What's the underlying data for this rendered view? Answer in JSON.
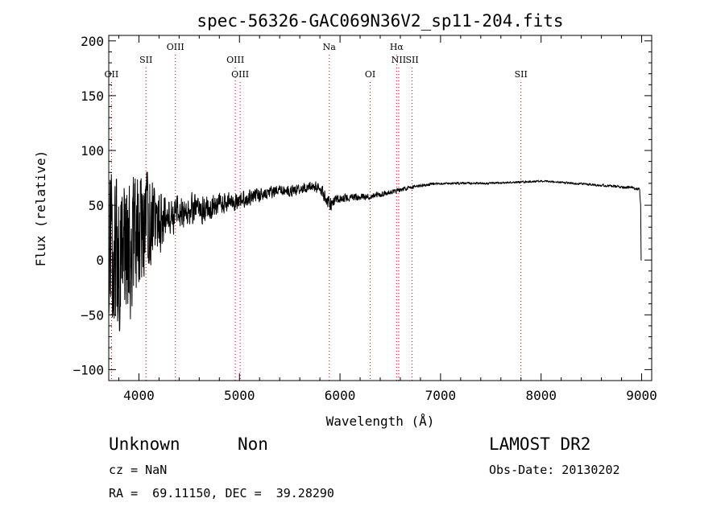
{
  "chart_data": {
    "type": "line",
    "title": "spec-56326-GAC069N36V2_sp11-204.fits",
    "xlabel": "Wavelength (Å)",
    "ylabel": "Flux (relative)",
    "xlim": [
      3700,
      9100
    ],
    "ylim": [
      -110,
      205
    ],
    "xticks": [
      4000,
      5000,
      6000,
      7000,
      8000,
      9000
    ],
    "yticks": [
      -100,
      -50,
      0,
      50,
      100,
      150,
      200
    ],
    "xtick_labels": [
      "4000",
      "5000",
      "6000",
      "7000",
      "8000",
      "9000"
    ],
    "ytick_labels": [
      "−100",
      "−50",
      "0",
      "50",
      "100",
      "150",
      "200"
    ],
    "line_color": "#000000",
    "marker_color": "#cc0000",
    "line_markers": [
      {
        "label": "OII",
        "wavelength": 3727,
        "row": 3
      },
      {
        "label": "SII",
        "wavelength": 4070,
        "row": 2
      },
      {
        "label": "OIII",
        "wavelength": 4363,
        "row": 1
      },
      {
        "label": "OIII",
        "wavelength": 4959,
        "row": 2
      },
      {
        "label": "OIII",
        "wavelength": 5007,
        "row": 3
      },
      {
        "label": "Na",
        "wavelength": 5893,
        "row": 1
      },
      {
        "label": "OI",
        "wavelength": 6300,
        "row": 3
      },
      {
        "label": "Hα",
        "wavelength": 6563,
        "row": 1
      },
      {
        "label": "NII",
        "wavelength": 6584,
        "row": 2
      },
      {
        "label": "SII",
        "wavelength": 6717,
        "row": 2
      },
      {
        "label": "SII",
        "wavelength": 7800,
        "row": 3
      }
    ],
    "spectrum_anchors": {
      "wavelength": [
        3700,
        3900,
        4100,
        4300,
        4500,
        4700,
        4900,
        5100,
        5300,
        5500,
        5700,
        5800,
        5900,
        6000,
        6200,
        6400,
        6600,
        6800,
        7000,
        7500,
        8000,
        8500,
        8900,
        8980,
        9000
      ],
      "flux": [
        0,
        5,
        35,
        40,
        45,
        48,
        53,
        57,
        62,
        63,
        67,
        66,
        50,
        57,
        57,
        60,
        64,
        68,
        70,
        70,
        72,
        69,
        66,
        65,
        0
      ],
      "noise": [
        95,
        80,
        55,
        22,
        18,
        14,
        11,
        9,
        7,
        6,
        5,
        6,
        7,
        5,
        4,
        3,
        2.5,
        1.6,
        1.3,
        1.2,
        1.1,
        1.3,
        1.6,
        1.6,
        0
      ]
    }
  },
  "footer": {
    "object_class": "Unknown",
    "subclass": "Non",
    "survey": "LAMOST DR2",
    "redshift": "cz = NaN",
    "obs_date": "Obs-Date: 20130202",
    "coords": "RA =  69.11150, DEC =  39.28290"
  }
}
